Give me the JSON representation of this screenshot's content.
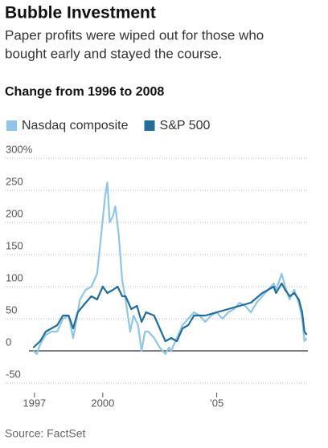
{
  "chart_data": {
    "type": "line",
    "title": "Bubble Investment",
    "subtitle": [
      "Paper profits were wiped out for those who",
      "bought early and stayed the course."
    ],
    "chart_title": "Change from 1996 to 2008",
    "source": "Source: FactSet",
    "xlim": [
      1996.9,
      2009.0
    ],
    "xticks": [
      {
        "value": 1997,
        "label": "1997"
      },
      2000,
      {
        "value": 2005,
        "label": "’05"
      }
    ],
    "ylim": [
      -60,
      300
    ],
    "yticks": [
      {
        "value": 300,
        "label": "300%"
      },
      250,
      200,
      150,
      100,
      50,
      0,
      -50
    ],
    "grid": true,
    "series": [
      {
        "name": "Nasdaq composite",
        "color": "#8ec6ea",
        "x": [
          1996.95,
          1997.1,
          1997.25,
          1997.5,
          1997.75,
          1998.0,
          1998.25,
          1998.5,
          1998.7,
          1998.9,
          1999.0,
          1999.25,
          1999.5,
          1999.75,
          1999.9,
          2000.1,
          2000.2,
          2000.3,
          2000.45,
          2000.55,
          2000.7,
          2000.85,
          2001.0,
          2001.2,
          2001.35,
          2001.55,
          2001.7,
          2001.85,
          2002.0,
          2002.25,
          2002.5,
          2002.75,
          2002.9,
          2003.0,
          2003.25,
          2003.5,
          2003.75,
          2004.0,
          2004.25,
          2004.5,
          2004.75,
          2005.0,
          2005.25,
          2005.5,
          2005.75,
          2006.0,
          2006.25,
          2006.5,
          2006.75,
          2007.0,
          2007.25,
          2007.5,
          2007.6,
          2007.85,
          2008.0,
          2008.2,
          2008.4,
          2008.6,
          2008.75,
          2008.85,
          2008.95
        ],
        "values": [
          0,
          -5,
          10,
          25,
          30,
          30,
          50,
          55,
          20,
          60,
          80,
          95,
          100,
          120,
          170,
          240,
          262,
          200,
          210,
          225,
          180,
          110,
          80,
          30,
          55,
          40,
          0,
          30,
          30,
          20,
          5,
          -5,
          5,
          0,
          20,
          40,
          50,
          60,
          55,
          45,
          55,
          60,
          50,
          60,
          65,
          75,
          70,
          60,
          75,
          85,
          95,
          105,
          95,
          120,
          100,
          80,
          95,
          75,
          50,
          15,
          20
        ]
      },
      {
        "name": "S&P 500",
        "color": "#1f6e9c",
        "x": [
          1996.95,
          1997.25,
          1997.5,
          1997.75,
          1998.0,
          1998.25,
          1998.5,
          1998.7,
          1998.9,
          1999.25,
          1999.5,
          1999.75,
          2000.0,
          2000.2,
          2000.45,
          2000.65,
          2000.85,
          2001.0,
          2001.25,
          2001.5,
          2001.7,
          2001.9,
          2002.25,
          2002.5,
          2002.75,
          2003.0,
          2003.25,
          2003.5,
          2003.75,
          2004.0,
          2004.5,
          2005.0,
          2005.5,
          2006.0,
          2006.5,
          2007.0,
          2007.5,
          2007.6,
          2007.85,
          2008.0,
          2008.2,
          2008.4,
          2008.6,
          2008.75,
          2008.85,
          2008.95
        ],
        "values": [
          5,
          15,
          30,
          35,
          40,
          55,
          55,
          35,
          60,
          75,
          85,
          80,
          100,
          90,
          95,
          100,
          85,
          85,
          65,
          70,
          45,
          60,
          55,
          35,
          15,
          20,
          15,
          35,
          40,
          55,
          55,
          60,
          65,
          70,
          75,
          90,
          100,
          90,
          105,
          95,
          85,
          90,
          80,
          60,
          30,
          25
        ]
      }
    ]
  }
}
